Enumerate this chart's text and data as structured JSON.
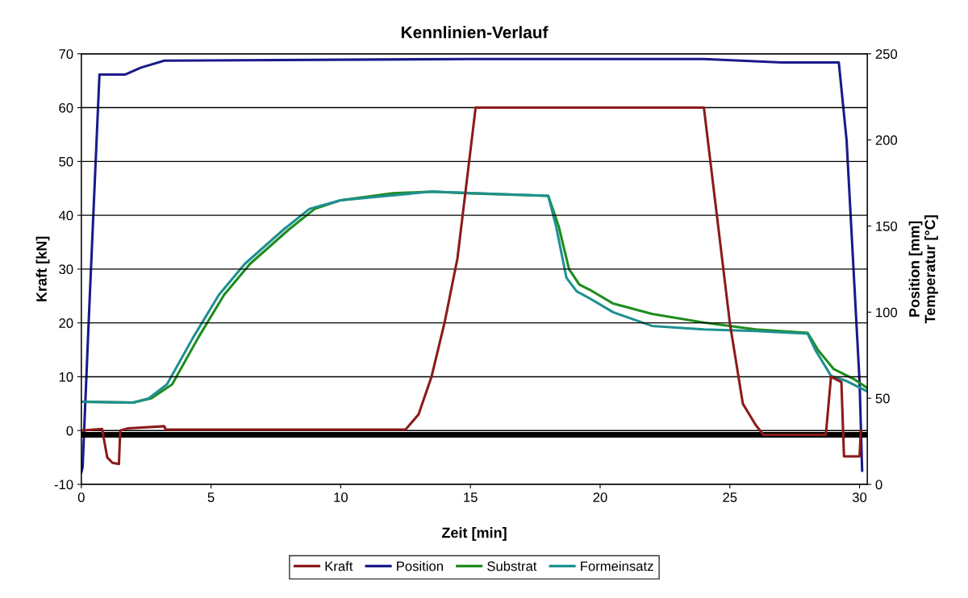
{
  "chart_data": {
    "type": "line",
    "title": "Kennlinien-Verlauf",
    "xlabel": "Zeit [min]",
    "ylabel": "Kraft [kN]",
    "y2label": "Position [mm]\nTemperatur [°C]",
    "xlim": [
      0,
      30.3
    ],
    "xticks": [
      0,
      5,
      10,
      15,
      20,
      25,
      30
    ],
    "ylim": [
      -10,
      70
    ],
    "yticks": [
      -10,
      0,
      10,
      20,
      30,
      40,
      50,
      60,
      70
    ],
    "y2lim": [
      0,
      250
    ],
    "y2ticks": [
      0,
      50,
      100,
      150,
      200,
      250
    ],
    "grid": "y",
    "legend": "bottom",
    "series": [
      {
        "color": "#000000",
        "x": [
          0,
          30.3
        ],
        "values": [
          -0.8,
          -0.8
        ]
      },
      {
        "name": "Kraft",
        "color": "#8b1a1a",
        "x": [
          0,
          0.8,
          1.0,
          1.2,
          1.45,
          1.5,
          1.8,
          3.2,
          3.25,
          12.5,
          13,
          13.5,
          14,
          14.5,
          15.2,
          24,
          24.5,
          25,
          25.5,
          26,
          26.3,
          28.7,
          28.9,
          29.3,
          29.4,
          30,
          30.05
        ],
        "values": [
          0,
          0.3,
          -5,
          -6,
          -6.2,
          0,
          0.4,
          0.8,
          0.2,
          0.2,
          3,
          10,
          20,
          32,
          60,
          60,
          40,
          20,
          5,
          1,
          -0.8,
          -0.8,
          10,
          9,
          -4.8,
          -4.8,
          0
        ]
      },
      {
        "name": "Position",
        "color": "#1a1a8c",
        "axis": "y2",
        "x": [
          0,
          0.05,
          0.3,
          0.7,
          1.7,
          2.3,
          3.2,
          15,
          24,
          27,
          29.2,
          29.5,
          30,
          30.1
        ],
        "values": [
          7,
          10,
          100,
          238,
          238,
          242,
          246,
          247,
          247,
          245,
          245,
          200,
          60,
          8
        ]
      },
      {
        "name": "Substrat",
        "color": "#1e8c1e",
        "axis": "y2",
        "x": [
          0,
          2,
          2.7,
          3.5,
          4.5,
          5.5,
          6.5,
          8,
          9,
          10,
          12,
          13.5,
          15,
          18,
          18.4,
          18.8,
          19.2,
          19.6,
          20.5,
          22,
          24,
          26,
          28,
          28.4,
          29,
          29.8,
          30.3
        ],
        "values": [
          48,
          47.5,
          50,
          58,
          85,
          110,
          128,
          148,
          160,
          165,
          169,
          170,
          169,
          167.5,
          150,
          125,
          116,
          113,
          105,
          99,
          94,
          90,
          88,
          78,
          67,
          61,
          56
        ]
      },
      {
        "name": "Formeinsatz",
        "color": "#1e9090",
        "axis": "y2",
        "x": [
          0,
          2,
          2.6,
          3.3,
          4.3,
          5.3,
          6.3,
          7.8,
          8.8,
          10,
          13.5,
          18,
          18.3,
          18.7,
          19.1,
          19.6,
          20.5,
          22,
          24,
          26,
          28,
          28.3,
          28.9,
          29.5,
          30.3
        ],
        "values": [
          48,
          47.5,
          50,
          58,
          85,
          110,
          128,
          148,
          160,
          165,
          170,
          167.5,
          150,
          120,
          112,
          108,
          100,
          92,
          90,
          89,
          87.5,
          78,
          63,
          60,
          54
        ]
      }
    ]
  }
}
